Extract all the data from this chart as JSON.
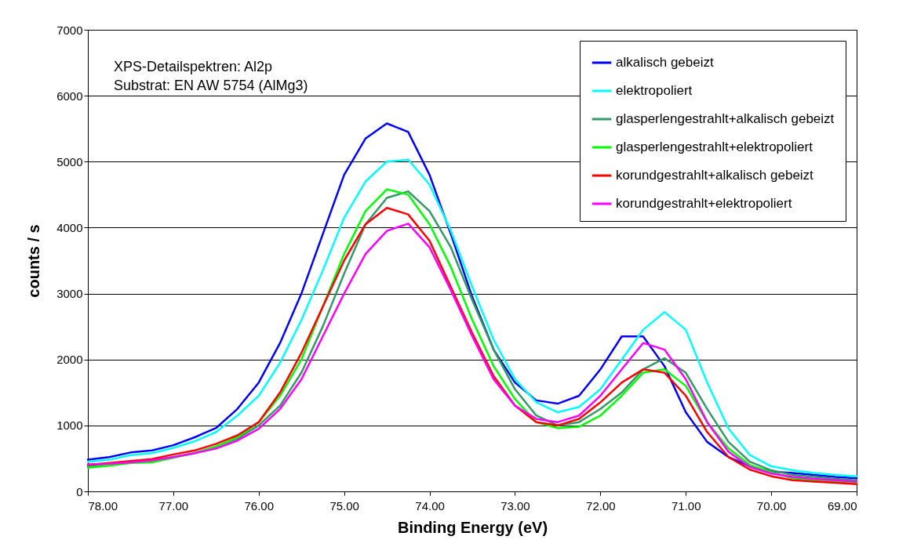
{
  "chart_data": {
    "type": "line",
    "xlabel": "Binding Energy (eV)",
    "ylabel": "counts / s",
    "annotations": [
      "XPS-Detailspektren: Al2p",
      "Substrat: EN AW 5754 (AlMg3)"
    ],
    "x": [
      78,
      77.75,
      77.5,
      77.25,
      77,
      76.75,
      76.5,
      76.25,
      76,
      75.75,
      75.5,
      75.25,
      75,
      74.75,
      74.5,
      74.25,
      74,
      73.75,
      73.5,
      73.25,
      73,
      72.75,
      72.5,
      72.25,
      72,
      71.75,
      71.5,
      71.25,
      71,
      70.75,
      70.5,
      70.25,
      70,
      69.75,
      69.5,
      69.25,
      69
    ],
    "series": [
      {
        "name": "alkalisch gebeizt",
        "color": "#0000ff",
        "values": [
          480,
          520,
          590,
          620,
          700,
          820,
          960,
          1250,
          1650,
          2250,
          3000,
          3900,
          4800,
          5350,
          5580,
          5450,
          4800,
          3900,
          2950,
          2150,
          1650,
          1380,
          1330,
          1450,
          1850,
          2350,
          2350,
          1900,
          1200,
          750,
          520,
          380,
          300,
          280,
          250,
          220,
          200
        ]
      },
      {
        "name": "elektropoliert",
        "color": "#00ffff",
        "values": [
          450,
          480,
          550,
          580,
          660,
          760,
          900,
          1150,
          1450,
          1950,
          2600,
          3350,
          4150,
          4700,
          5000,
          5030,
          4650,
          3950,
          3100,
          2300,
          1700,
          1350,
          1200,
          1280,
          1550,
          2000,
          2450,
          2720,
          2450,
          1650,
          950,
          550,
          380,
          320,
          280,
          250,
          230
        ]
      },
      {
        "name": "glasperlengestrahlt+alkalisch gebeizt",
        "color": "#339966",
        "values": [
          380,
          420,
          450,
          470,
          520,
          580,
          680,
          800,
          1000,
          1300,
          1800,
          2500,
          3300,
          4050,
          4450,
          4550,
          4250,
          3700,
          2900,
          2150,
          1550,
          1150,
          1000,
          1050,
          1250,
          1500,
          1850,
          2020,
          1800,
          1250,
          750,
          450,
          320,
          250,
          220,
          190,
          170
        ]
      },
      {
        "name": "glasperlengestrahlt+elektropoliert",
        "color": "#00ff00",
        "values": [
          360,
          390,
          430,
          440,
          510,
          580,
          680,
          820,
          1050,
          1450,
          2000,
          2800,
          3600,
          4250,
          4580,
          4500,
          4050,
          3400,
          2600,
          1900,
          1400,
          1050,
          960,
          980,
          1150,
          1450,
          1800,
          1850,
          1600,
          1050,
          650,
          400,
          290,
          200,
          170,
          150,
          130
        ]
      },
      {
        "name": "korundgestrahlt+alkalisch gebeizt",
        "color": "#ff0000",
        "values": [
          400,
          430,
          460,
          490,
          560,
          620,
          720,
          850,
          1050,
          1500,
          2100,
          2800,
          3500,
          4050,
          4300,
          4200,
          3800,
          3100,
          2400,
          1750,
          1300,
          1050,
          1000,
          1100,
          1350,
          1650,
          1850,
          1800,
          1450,
          900,
          520,
          330,
          230,
          170,
          150,
          130,
          110
        ]
      },
      {
        "name": "korundgestrahlt+elektropoliert",
        "color": "#ff00ff",
        "values": [
          410,
          420,
          440,
          470,
          520,
          580,
          650,
          770,
          950,
          1250,
          1700,
          2350,
          3000,
          3600,
          3950,
          4060,
          3700,
          3050,
          2350,
          1700,
          1300,
          1100,
          1050,
          1150,
          1450,
          1850,
          2250,
          2150,
          1700,
          1050,
          600,
          370,
          270,
          220,
          190,
          170,
          150
        ]
      }
    ],
    "xlim": [
      78,
      69
    ],
    "xticks": [
      {
        "value": 78,
        "label": "78.00"
      },
      {
        "value": 77,
        "label": "77.00"
      },
      {
        "value": 76,
        "label": "76.00"
      },
      {
        "value": 75,
        "label": "75.00"
      },
      {
        "value": 74,
        "label": "74.00"
      },
      {
        "value": 73,
        "label": "73.00"
      },
      {
        "value": 72,
        "label": "72.00"
      },
      {
        "value": 71,
        "label": "71.00"
      },
      {
        "value": 70,
        "label": "70.00"
      },
      {
        "value": 69,
        "label": "69.00"
      }
    ],
    "ylim": [
      0,
      7000
    ],
    "yticks": [
      0,
      1000,
      2000,
      3000,
      4000,
      5000,
      6000,
      7000
    ],
    "grid": "y",
    "legend": "top right",
    "line_style": "solid"
  }
}
